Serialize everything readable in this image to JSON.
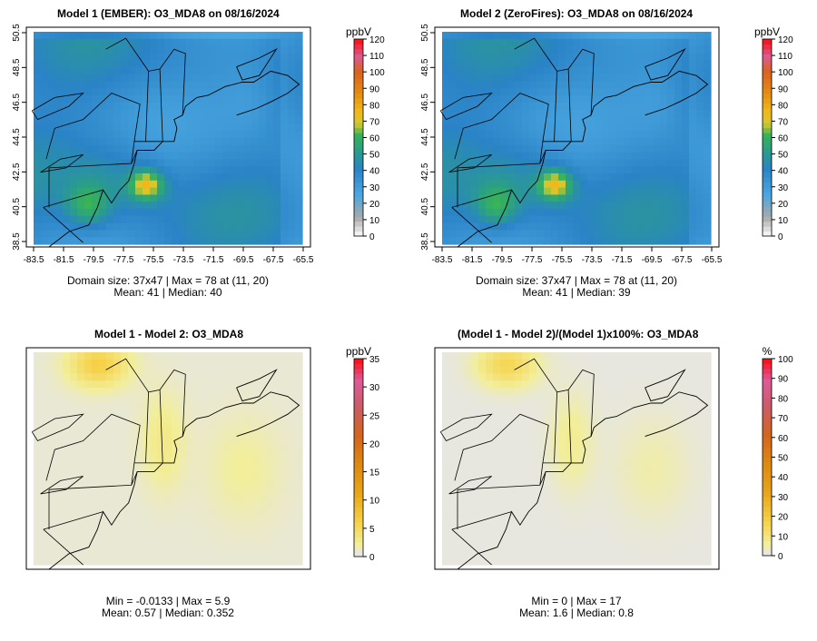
{
  "panels": [
    {
      "id": "p1",
      "title": "Model 1 (EMBER): O3_MDA8 on 08/16/2024",
      "unit": "ppbV",
      "legend_ticks": [
        0,
        10,
        20,
        30,
        40,
        50,
        60,
        70,
        80,
        90,
        100,
        110,
        120
      ],
      "legend_max": 120,
      "palette": "absolute",
      "xticks": [
        "-83.5",
        "-81.5",
        "-79.5",
        "-77.5",
        "-75.5",
        "-73.5",
        "-71.5",
        "-69.5",
        "-67.5",
        "-65.5"
      ],
      "yticks": [
        "38.5",
        "40.5",
        "42.5",
        "44.5",
        "46.5",
        "48.5",
        "50.5"
      ],
      "stats_line1": "Domain size: 37x47 | Max = 78 at (11, 20)",
      "stats_line2": "Mean: 41 |  Median: 40"
    },
    {
      "id": "p2",
      "title": "Model 2 (ZeroFires): O3_MDA8 on 08/16/2024",
      "unit": "ppbV",
      "legend_ticks": [
        0,
        10,
        20,
        30,
        40,
        50,
        60,
        70,
        80,
        90,
        100,
        110,
        120
      ],
      "legend_max": 120,
      "palette": "absolute",
      "xticks": [
        "-83.5",
        "-81.5",
        "-79.5",
        "-77.5",
        "-75.5",
        "-73.5",
        "-71.5",
        "-69.5",
        "-67.5",
        "-65.5"
      ],
      "yticks": [
        "38.5",
        "40.5",
        "42.5",
        "44.5",
        "46.5",
        "48.5",
        "50.5"
      ],
      "stats_line1": "Domain size: 37x47 | Max = 78 at (11, 20)",
      "stats_line2": "Mean: 41 |  Median: 39"
    },
    {
      "id": "p3",
      "title": "Model 1 - Model 2: O3_MDA8",
      "unit": "ppbV",
      "legend_ticks": [
        0,
        5,
        10,
        15,
        20,
        25,
        30,
        35
      ],
      "legend_max": 35,
      "palette": "difference",
      "xticks": [],
      "yticks": [],
      "stats_line1": "Min = -0.0133 | Max = 5.9",
      "stats_line2": "Mean: 0.57 |  Median: 0.352"
    },
    {
      "id": "p4",
      "title": "(Model 1 - Model 2)/(Model 1)x100%: O3_MDA8",
      "unit": "%",
      "legend_ticks": [
        0,
        10,
        20,
        30,
        40,
        50,
        60,
        70,
        80,
        90,
        100
      ],
      "legend_max": 100,
      "palette": "difference",
      "xticks": [],
      "yticks": [],
      "stats_line1": "Min = 0 | Max = 17",
      "stats_line2": "Mean: 1.6 |  Median: 0.8"
    }
  ],
  "chart_data": [
    {
      "type": "heatmap",
      "title": "Model 1 (EMBER): O3_MDA8 on 08/16/2024",
      "variable": "O3_MDA8",
      "date": "08/16/2024",
      "unit": "ppbV",
      "grid": "37x47",
      "max": 78,
      "max_at": "(11, 20)",
      "mean": 41,
      "median": 40,
      "color_range": [
        0,
        120
      ],
      "xlim": [
        -83.5,
        -65.5
      ],
      "ylim": [
        38.5,
        50.5
      ]
    },
    {
      "type": "heatmap",
      "title": "Model 2 (ZeroFires): O3_MDA8 on 08/16/2024",
      "variable": "O3_MDA8",
      "date": "08/16/2024",
      "unit": "ppbV",
      "grid": "37x47",
      "max": 78,
      "max_at": "(11, 20)",
      "mean": 41,
      "median": 39,
      "color_range": [
        0,
        120
      ],
      "xlim": [
        -83.5,
        -65.5
      ],
      "ylim": [
        38.5,
        50.5
      ]
    },
    {
      "type": "heatmap",
      "title": "Model 1 - Model 2: O3_MDA8",
      "unit": "ppbV",
      "min": -0.0133,
      "max": 5.9,
      "mean": 0.57,
      "median": 0.352,
      "color_range": [
        0,
        35
      ]
    },
    {
      "type": "heatmap",
      "title": "(Model 1 - Model 2)/(Model 1)x100%: O3_MDA8",
      "unit": "%",
      "min": 0,
      "max": 17,
      "mean": 1.6,
      "median": 0.8,
      "color_range": [
        0,
        100
      ]
    }
  ]
}
